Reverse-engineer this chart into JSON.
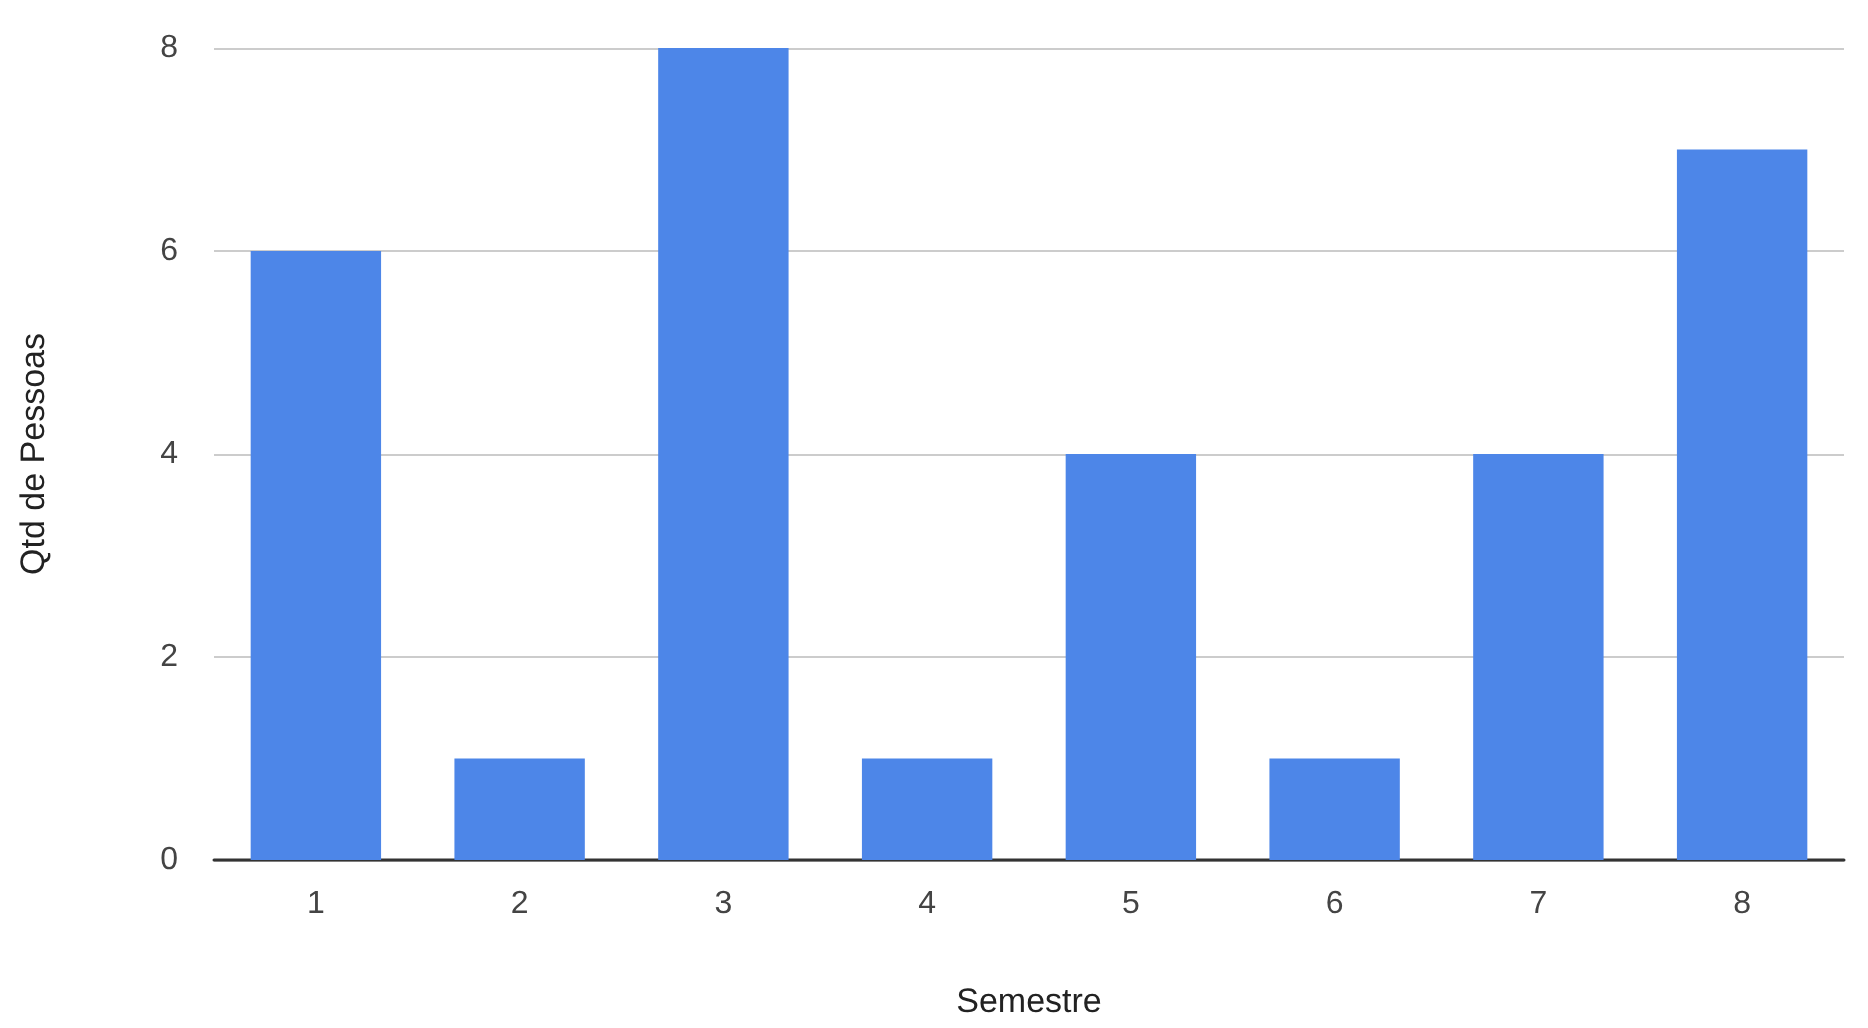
{
  "chart_data": {
    "type": "bar",
    "xlabel": "Semestre",
    "ylabel": "Qtd de Pessoas",
    "categories": [
      "1",
      "2",
      "3",
      "4",
      "5",
      "6",
      "7",
      "8"
    ],
    "values": [
      6,
      1,
      8,
      1,
      4,
      1,
      4,
      7
    ],
    "color": "#4d86e8",
    "ylim": [
      0,
      8
    ],
    "yticks": [
      0,
      2,
      4,
      6,
      8
    ],
    "grid": "y"
  }
}
